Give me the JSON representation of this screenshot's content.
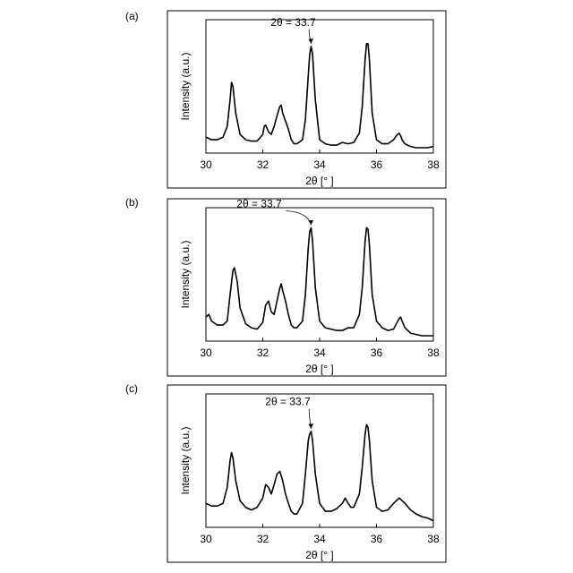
{
  "chart_data": [
    {
      "type": "line",
      "panel_label": "(a)",
      "xlabel": "2θ [° ]",
      "ylabel": "Intensity (a.u.)",
      "xlim": [
        30,
        38
      ],
      "xticks": [
        30,
        32,
        34,
        36,
        38
      ],
      "annotation": {
        "text": "2θ = 33.7",
        "x": 33.7
      },
      "series": [
        {
          "x": [
            30.0,
            30.2,
            30.4,
            30.6,
            30.75,
            30.85,
            30.9,
            30.95,
            31.05,
            31.2,
            31.4,
            31.6,
            31.8,
            32.0,
            32.05,
            32.1,
            32.2,
            32.3,
            32.4,
            32.5,
            32.6,
            32.65,
            32.7,
            32.8,
            32.9,
            33.0,
            33.1,
            33.2,
            33.4,
            33.5,
            33.6,
            33.65,
            33.7,
            33.75,
            33.85,
            34.0,
            34.2,
            34.4,
            34.6,
            34.8,
            35.0,
            35.2,
            35.4,
            35.5,
            35.6,
            35.65,
            35.7,
            35.75,
            35.85,
            36.0,
            36.2,
            36.4,
            36.6,
            36.7,
            36.8,
            36.85,
            36.9,
            37.0,
            37.1,
            37.2,
            37.4,
            37.6,
            37.8,
            38.0
          ],
          "y": [
            0.12,
            0.1,
            0.1,
            0.12,
            0.2,
            0.4,
            0.53,
            0.5,
            0.3,
            0.14,
            0.1,
            0.09,
            0.09,
            0.14,
            0.2,
            0.21,
            0.16,
            0.14,
            0.2,
            0.28,
            0.35,
            0.36,
            0.3,
            0.24,
            0.18,
            0.1,
            0.07,
            0.07,
            0.1,
            0.25,
            0.58,
            0.74,
            0.8,
            0.74,
            0.4,
            0.1,
            0.07,
            0.06,
            0.06,
            0.08,
            0.07,
            0.08,
            0.15,
            0.35,
            0.7,
            0.82,
            0.82,
            0.7,
            0.3,
            0.1,
            0.07,
            0.07,
            0.1,
            0.13,
            0.15,
            0.13,
            0.1,
            0.07,
            0.06,
            0.05,
            0.04,
            0.04,
            0.04,
            0.05
          ]
        }
      ]
    },
    {
      "type": "line",
      "panel_label": "(b)",
      "xlabel": "2θ [° ]",
      "ylabel": "Intensity (a.u.)",
      "xlim": [
        30,
        38
      ],
      "xticks": [
        30,
        32,
        34,
        36,
        38
      ],
      "annotation": {
        "text": "2θ = 33.7",
        "x": 33.7
      },
      "series": [
        {
          "x": [
            30.0,
            30.1,
            30.2,
            30.4,
            30.6,
            30.75,
            30.85,
            30.95,
            31.0,
            31.1,
            31.2,
            31.4,
            31.6,
            31.8,
            32.0,
            32.1,
            32.2,
            32.3,
            32.4,
            32.5,
            32.6,
            32.65,
            32.7,
            32.8,
            32.9,
            33.0,
            33.1,
            33.2,
            33.4,
            33.5,
            33.6,
            33.65,
            33.7,
            33.75,
            33.85,
            34.0,
            34.2,
            34.4,
            34.6,
            34.8,
            35.0,
            35.2,
            35.4,
            35.5,
            35.6,
            35.65,
            35.7,
            35.75,
            35.85,
            36.0,
            36.2,
            36.4,
            36.6,
            36.7,
            36.8,
            36.85,
            36.9,
            37.0,
            37.1,
            37.2,
            37.4,
            37.6,
            37.8,
            38.0
          ],
          "y": [
            0.18,
            0.2,
            0.15,
            0.12,
            0.12,
            0.15,
            0.35,
            0.53,
            0.55,
            0.45,
            0.25,
            0.13,
            0.1,
            0.09,
            0.14,
            0.27,
            0.3,
            0.22,
            0.2,
            0.3,
            0.4,
            0.43,
            0.38,
            0.3,
            0.2,
            0.12,
            0.1,
            0.1,
            0.15,
            0.35,
            0.7,
            0.82,
            0.85,
            0.75,
            0.4,
            0.15,
            0.1,
            0.09,
            0.08,
            0.08,
            0.1,
            0.1,
            0.2,
            0.4,
            0.75,
            0.85,
            0.84,
            0.72,
            0.35,
            0.15,
            0.1,
            0.08,
            0.09,
            0.13,
            0.17,
            0.18,
            0.15,
            0.1,
            0.08,
            0.06,
            0.05,
            0.04,
            0.04,
            0.04
          ]
        }
      ]
    },
    {
      "type": "line",
      "panel_label": "(c)",
      "xlabel": "2θ [° ]",
      "ylabel": "Intensity (a.u.)",
      "xlim": [
        30,
        38
      ],
      "xticks": [
        30,
        32,
        34,
        36,
        38
      ],
      "annotation": {
        "text": "2θ = 33.7",
        "x": 33.7
      },
      "series": [
        {
          "x": [
            30.0,
            30.2,
            30.4,
            30.6,
            30.75,
            30.85,
            30.9,
            30.95,
            31.05,
            31.2,
            31.4,
            31.6,
            31.8,
            32.0,
            32.1,
            32.2,
            32.3,
            32.4,
            32.5,
            32.6,
            32.7,
            32.8,
            32.9,
            33.0,
            33.1,
            33.2,
            33.4,
            33.5,
            33.6,
            33.65,
            33.7,
            33.75,
            33.85,
            34.0,
            34.2,
            34.4,
            34.6,
            34.8,
            34.9,
            35.0,
            35.1,
            35.2,
            35.4,
            35.5,
            35.6,
            35.65,
            35.7,
            35.75,
            35.85,
            36.0,
            36.2,
            36.4,
            36.6,
            36.8,
            36.9,
            37.0,
            37.2,
            37.4,
            37.6,
            37.8,
            38.0
          ],
          "y": [
            0.18,
            0.16,
            0.16,
            0.18,
            0.3,
            0.5,
            0.56,
            0.52,
            0.35,
            0.2,
            0.15,
            0.13,
            0.15,
            0.22,
            0.32,
            0.3,
            0.25,
            0.32,
            0.4,
            0.42,
            0.35,
            0.25,
            0.18,
            0.12,
            0.1,
            0.1,
            0.18,
            0.4,
            0.65,
            0.7,
            0.72,
            0.65,
            0.4,
            0.18,
            0.12,
            0.12,
            0.14,
            0.18,
            0.22,
            0.18,
            0.15,
            0.15,
            0.25,
            0.45,
            0.7,
            0.77,
            0.75,
            0.65,
            0.35,
            0.15,
            0.12,
            0.13,
            0.18,
            0.22,
            0.2,
            0.18,
            0.13,
            0.1,
            0.08,
            0.07,
            0.05
          ]
        }
      ]
    }
  ]
}
